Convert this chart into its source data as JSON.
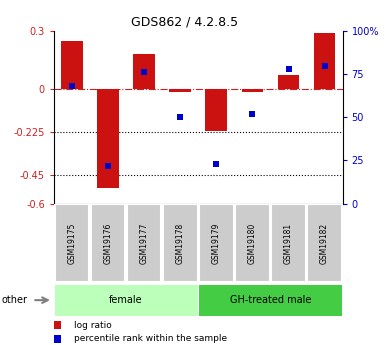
{
  "title": "GDS862 / 4.2.8.5",
  "samples": [
    "GSM19175",
    "GSM19176",
    "GSM19177",
    "GSM19178",
    "GSM19179",
    "GSM19180",
    "GSM19181",
    "GSM19182"
  ],
  "log_ratio": [
    0.25,
    -0.52,
    0.18,
    -0.02,
    -0.22,
    -0.02,
    0.07,
    0.29
  ],
  "percentile_rank": [
    68,
    22,
    76,
    50,
    23,
    52,
    78,
    80
  ],
  "groups": [
    {
      "label": "female",
      "start": 0,
      "end": 4,
      "color": "#bbffbb"
    },
    {
      "label": "GH-treated male",
      "start": 4,
      "end": 8,
      "color": "#44cc44"
    }
  ],
  "ylim_left": [
    -0.6,
    0.3
  ],
  "ylim_right": [
    0,
    100
  ],
  "yticks_left": [
    0.3,
    0.0,
    -0.225,
    -0.45,
    -0.6
  ],
  "ytick_labels_left": [
    "0.3",
    "0",
    "-0.225",
    "-0.45",
    "-0.6"
  ],
  "yticks_right": [
    100,
    75,
    50,
    25,
    0
  ],
  "ytick_labels_right": [
    "100%",
    "75",
    "50",
    "25",
    "0"
  ],
  "bar_color": "#cc1111",
  "dot_color": "#0000cc",
  "hline_color": "#cc2222",
  "dotline_color": "#000000",
  "legend_log_ratio": "log ratio",
  "legend_percentile": "percentile rank within the sample",
  "other_label": "other",
  "bar_width": 0.6
}
